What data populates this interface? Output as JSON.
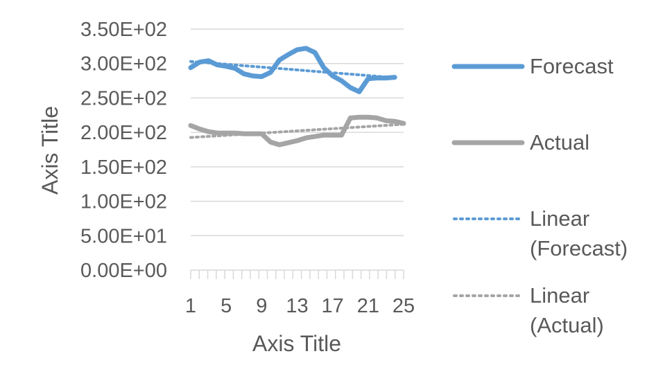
{
  "chart_data": {
    "type": "line",
    "title": "",
    "xlabel": "Axis Title",
    "ylabel": "Axis Title",
    "x": [
      1,
      2,
      3,
      4,
      5,
      6,
      7,
      8,
      9,
      10,
      11,
      12,
      13,
      14,
      15,
      16,
      17,
      18,
      19,
      20,
      21,
      22,
      23,
      24,
      25
    ],
    "x_tick_labels": [
      "1",
      "5",
      "9",
      "13",
      "17",
      "21",
      "25"
    ],
    "y_tick_labels": [
      "0.00E+00",
      "5.00E+01",
      "1.00E+02",
      "1.50E+02",
      "2.00E+02",
      "2.50E+02",
      "3.00E+02",
      "3.50E+02"
    ],
    "ylim": [
      0,
      350
    ],
    "grid": true,
    "legend_position": "right",
    "series": [
      {
        "name": "Forecast",
        "style": "solid",
        "color": "#5b9bd5",
        "values": [
          294,
          302,
          304,
          298,
          296,
          293,
          285,
          282,
          281,
          287,
          305,
          313,
          320,
          322,
          316,
          294,
          282,
          275,
          265,
          259,
          278,
          279,
          279,
          280,
          null
        ]
      },
      {
        "name": "Actual",
        "style": "solid",
        "color": "#a5a5a5",
        "values": [
          210,
          205,
          201,
          199,
          199,
          199,
          198,
          198,
          198,
          186,
          182,
          185,
          188,
          192,
          194,
          196,
          196,
          196,
          221,
          222,
          222,
          221,
          217,
          216,
          213
        ]
      }
    ],
    "trendlines": [
      {
        "name": "Linear (Forecast)",
        "style": "dotted",
        "color": "#5b9bd5",
        "of": "Forecast"
      },
      {
        "name": "Linear (Actual)",
        "style": "dotted",
        "color": "#a5a5a5",
        "of": "Actual"
      }
    ],
    "legend": [
      {
        "lines": [
          "Forecast"
        ],
        "style": "solid",
        "color": "#5b9bd5"
      },
      {
        "lines": [
          "Actual"
        ],
        "style": "solid",
        "color": "#a5a5a5"
      },
      {
        "lines": [
          "Linear",
          "(Forecast)"
        ],
        "style": "dotted",
        "color": "#5b9bd5"
      },
      {
        "lines": [
          "Linear",
          "(Actual)"
        ],
        "style": "dotted",
        "color": "#a5a5a5"
      }
    ]
  }
}
